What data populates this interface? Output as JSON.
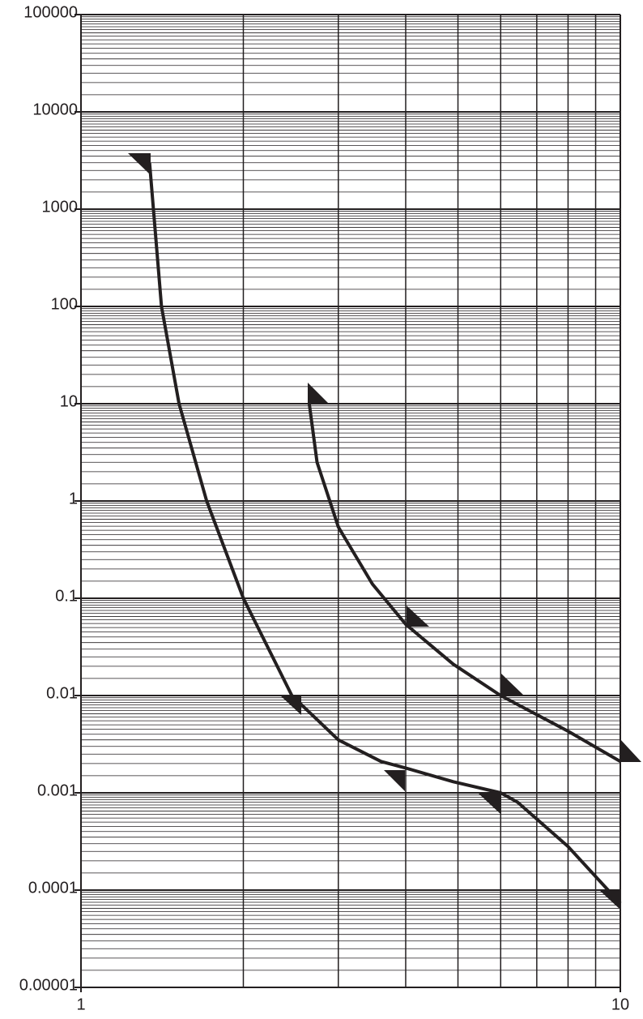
{
  "chart_data": {
    "type": "line",
    "log_x": true,
    "log_y": true,
    "grid": true,
    "xlim": [
      1,
      10
    ],
    "xticks": [
      1,
      10
    ],
    "ylim": [
      1e-05,
      100000
    ],
    "yticks": [
      {
        "value": 1e-05,
        "label": "0.00001"
      },
      0.0001,
      0.001,
      0.01,
      0.1,
      1,
      10,
      100,
      1000,
      10000,
      100000
    ],
    "series": [
      {
        "color": "#231f20",
        "x": [
          1.34,
          1.41,
          1.52,
          1.71,
          2,
          2.46,
          3.0,
          3.6,
          4,
          4.9,
          6,
          6.45,
          8,
          10
        ],
        "values": [
          3000,
          100,
          10,
          1,
          0.1,
          0.01,
          0.0035,
          0.0021,
          0.0018,
          0.0013,
          0.001,
          0.0008,
          0.00028,
          7.3e-05
        ]
      },
      {
        "color": "#231f20",
        "x": [
          2.65,
          2.74,
          3,
          3.47,
          4,
          4.9,
          6,
          8,
          10
        ],
        "values": [
          10,
          2.5,
          0.54,
          0.14,
          0.054,
          0.021,
          0.01,
          0.0043,
          0.0021
        ]
      }
    ]
  }
}
